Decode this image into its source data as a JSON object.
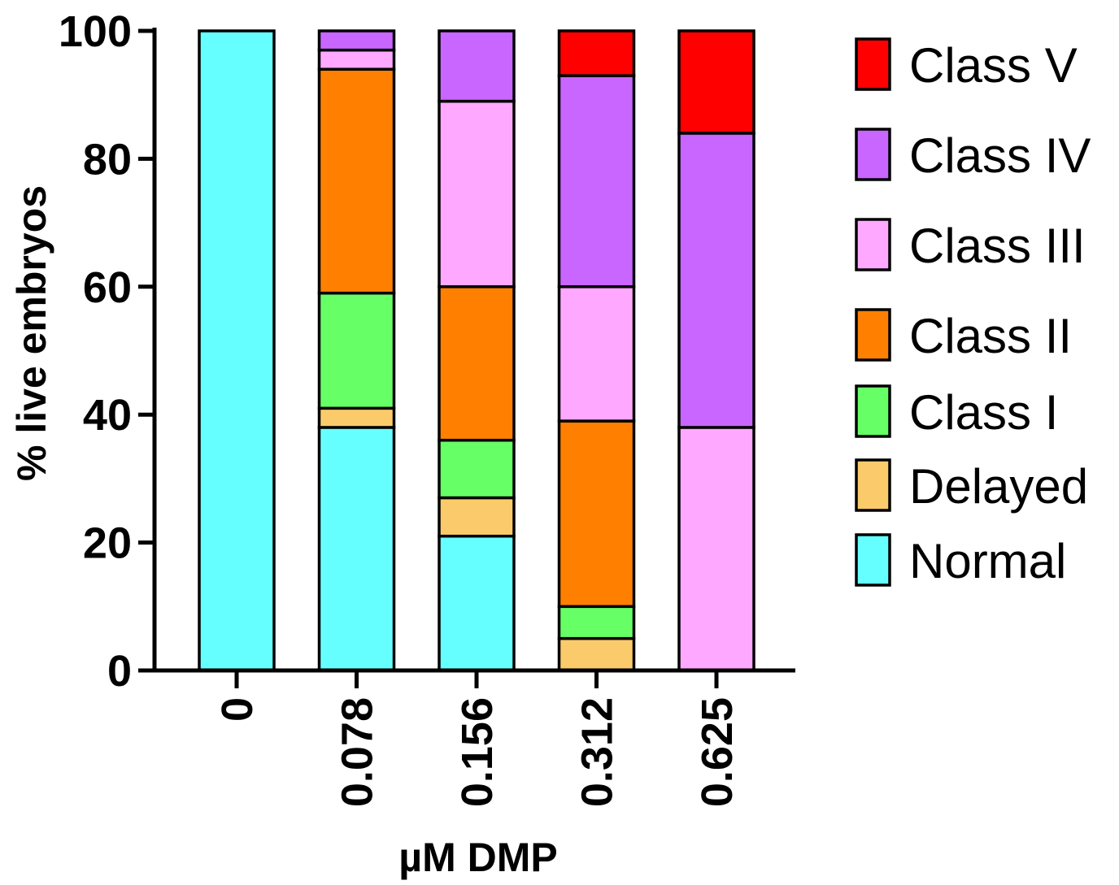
{
  "chart_data": {
    "type": "bar",
    "stacked": true,
    "xlabel": "µM DMP",
    "ylabel": "% live embryos",
    "ylim": [
      0,
      100
    ],
    "yticks": [
      0,
      20,
      40,
      60,
      80,
      100
    ],
    "categories": [
      "0",
      "0.078",
      "0.156",
      "0.312",
      "0.625"
    ],
    "series": [
      {
        "name": "Normal",
        "color": "#66FFFF",
        "values": [
          100,
          38,
          21,
          0,
          0
        ]
      },
      {
        "name": "Delayed",
        "color": "#FBCB6B",
        "values": [
          0,
          3,
          6,
          5,
          0
        ]
      },
      {
        "name": "Class I",
        "color": "#66FF66",
        "values": [
          0,
          18,
          9,
          5,
          0
        ]
      },
      {
        "name": "Class II",
        "color": "#FF8000",
        "values": [
          0,
          35,
          24,
          29,
          0
        ]
      },
      {
        "name": "Class III",
        "color": "#FFA8FF",
        "values": [
          0,
          3,
          29,
          21,
          38
        ]
      },
      {
        "name": "Class IV",
        "color": "#C966FF",
        "values": [
          0,
          3,
          11,
          33,
          46
        ]
      },
      {
        "name": "Class V",
        "color": "#FF0000",
        "values": [
          0,
          0,
          0,
          7,
          16
        ]
      }
    ],
    "legend_position": "right",
    "grid": false
  }
}
